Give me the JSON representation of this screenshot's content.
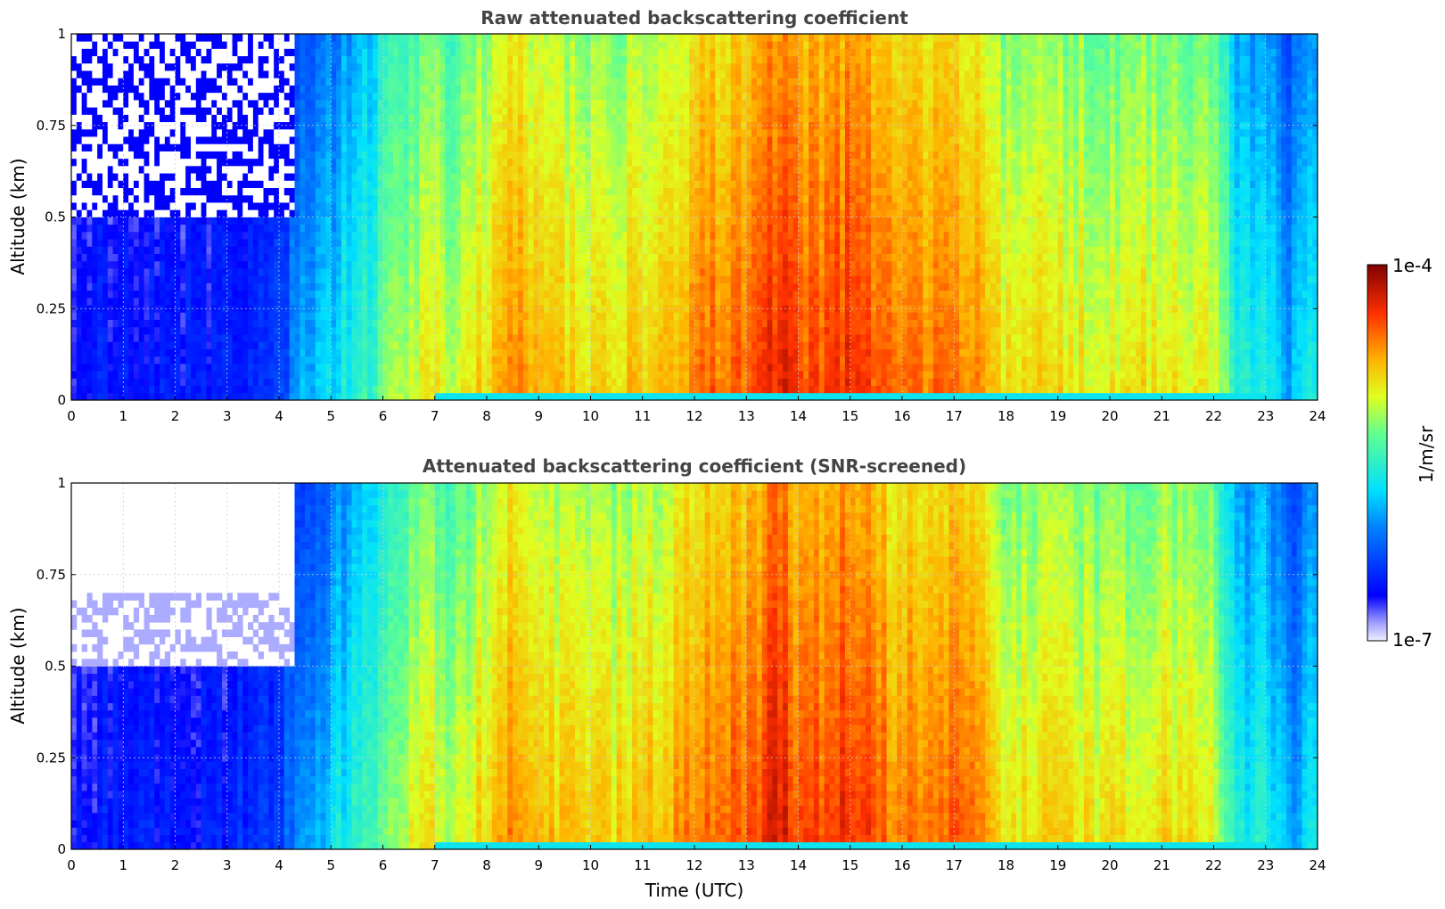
{
  "figure": {
    "xlabel": "Time (UTC)",
    "colorbar": {
      "label": "1/m/sr",
      "max_label": "1e-4",
      "min_label": "1e-7",
      "scale": "log",
      "colormap": "jet"
    }
  },
  "chart_data": [
    {
      "type": "heatmap",
      "title": "Raw attenuated backscattering coefficient",
      "xlabel": "",
      "ylabel": "Altitude (km)",
      "xlim": [
        0,
        24
      ],
      "ylim": [
        0,
        1
      ],
      "x_ticks": [
        "0",
        "1",
        "2",
        "3",
        "4",
        "5",
        "6",
        "7",
        "8",
        "9",
        "10",
        "11",
        "12",
        "13",
        "14",
        "15",
        "16",
        "17",
        "18",
        "19",
        "20",
        "21",
        "22",
        "23",
        "24"
      ],
      "y_ticks": [
        "0",
        "0.25",
        "0.5",
        "0.75",
        "1"
      ],
      "grid": true,
      "colorbar_range": [
        "1e-7",
        "1e-4"
      ],
      "x_hours": [
        0,
        1,
        2,
        3,
        4,
        4.5,
        5,
        6,
        6.9,
        7.2,
        8,
        8.5,
        9,
        10,
        11,
        12,
        13,
        13.7,
        14,
        15,
        16,
        17,
        17.5,
        18,
        19,
        20,
        21,
        22,
        22.5,
        23,
        23.5,
        24
      ],
      "column_signal": [
        0.15,
        0.15,
        0.15,
        0.16,
        0.2,
        0.35,
        0.4,
        0.55,
        0.7,
        0.62,
        0.72,
        0.8,
        0.74,
        0.7,
        0.72,
        0.8,
        0.84,
        0.92,
        0.84,
        0.88,
        0.8,
        0.82,
        0.82,
        0.7,
        0.7,
        0.68,
        0.7,
        0.66,
        0.45,
        0.45,
        0.35,
        0.45
      ],
      "noise_above_km": 0.5,
      "masked_low_snr": false
    },
    {
      "type": "heatmap",
      "title": "Attenuated backscattering coefficient (SNR-screened)",
      "xlabel": "Time (UTC)",
      "ylabel": "Altitude (km)",
      "xlim": [
        0,
        24
      ],
      "ylim": [
        0,
        1
      ],
      "x_ticks": [
        "0",
        "1",
        "2",
        "3",
        "4",
        "5",
        "6",
        "7",
        "8",
        "9",
        "10",
        "11",
        "12",
        "13",
        "14",
        "15",
        "16",
        "17",
        "18",
        "19",
        "20",
        "21",
        "22",
        "23",
        "24"
      ],
      "y_ticks": [
        "0",
        "0.25",
        "0.5",
        "0.75",
        "1"
      ],
      "grid": true,
      "colorbar_range": [
        "1e-7",
        "1e-4"
      ],
      "x_hours": [
        0,
        1,
        2,
        3,
        4,
        4.5,
        5,
        6,
        6.9,
        7.2,
        8,
        8.5,
        9,
        10,
        11,
        12,
        13,
        13.7,
        14,
        15,
        16,
        17,
        17.5,
        18,
        19,
        20,
        21,
        22,
        22.5,
        23,
        23.5,
        24
      ],
      "column_signal": [
        0.15,
        0.15,
        0.15,
        0.16,
        0.2,
        0.35,
        0.4,
        0.55,
        0.7,
        0.62,
        0.72,
        0.8,
        0.74,
        0.7,
        0.72,
        0.8,
        0.84,
        0.92,
        0.84,
        0.88,
        0.8,
        0.82,
        0.82,
        0.7,
        0.7,
        0.68,
        0.7,
        0.66,
        0.45,
        0.45,
        0.35,
        0.45
      ],
      "noise_above_km": 0.5,
      "masked_low_snr": true
    }
  ]
}
